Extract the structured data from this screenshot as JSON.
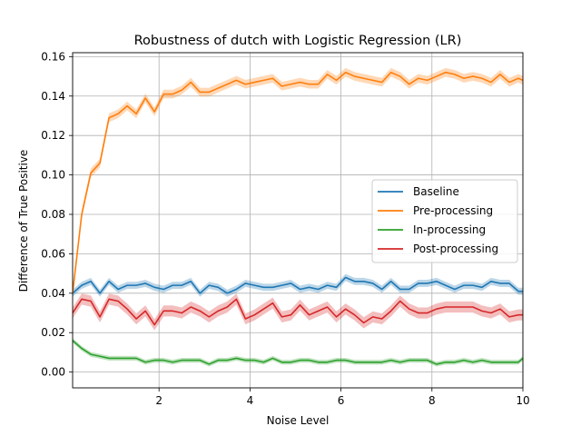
{
  "chart_data": {
    "type": "line",
    "title": "Robustness of dutch with Logistic Regression (LR)",
    "xlabel": "Noise Level",
    "ylabel": "Difference of True Positive",
    "xlim": [
      0.1,
      10
    ],
    "ylim": [
      -0.008,
      0.162
    ],
    "xticks": [
      2,
      4,
      6,
      8,
      10
    ],
    "yticks": [
      0.0,
      0.02,
      0.04,
      0.06,
      0.08,
      0.1,
      0.12,
      0.14,
      0.16
    ],
    "ytick_labels": [
      "0.00",
      "0.02",
      "0.04",
      "0.06",
      "0.08",
      "0.10",
      "0.12",
      "0.14",
      "0.16"
    ],
    "grid": true,
    "legend_position": "center-right",
    "x": [
      0.1,
      0.3,
      0.5,
      0.7,
      0.9,
      1.1,
      1.3,
      1.5,
      1.7,
      1.9,
      2.1,
      2.3,
      2.5,
      2.7,
      2.9,
      3.1,
      3.3,
      3.5,
      3.7,
      3.9,
      4.1,
      4.3,
      4.5,
      4.7,
      4.9,
      5.1,
      5.3,
      5.5,
      5.7,
      5.9,
      6.1,
      6.3,
      6.5,
      6.7,
      6.9,
      7.1,
      7.3,
      7.5,
      7.7,
      7.9,
      8.1,
      8.3,
      8.5,
      8.7,
      8.9,
      9.1,
      9.3,
      9.5,
      9.7,
      9.9,
      10.0
    ],
    "series": [
      {
        "name": "Baseline",
        "color": "#1f77b4",
        "values": [
          0.04,
          0.044,
          0.046,
          0.04,
          0.046,
          0.042,
          0.044,
          0.044,
          0.045,
          0.043,
          0.042,
          0.044,
          0.044,
          0.046,
          0.04,
          0.044,
          0.043,
          0.04,
          0.042,
          0.045,
          0.044,
          0.043,
          0.043,
          0.044,
          0.045,
          0.042,
          0.043,
          0.042,
          0.044,
          0.043,
          0.048,
          0.046,
          0.046,
          0.045,
          0.042,
          0.046,
          0.042,
          0.042,
          0.045,
          0.045,
          0.046,
          0.044,
          0.042,
          0.044,
          0.044,
          0.043,
          0.046,
          0.045,
          0.045,
          0.041,
          0.041
        ],
        "band": 0.0018
      },
      {
        "name": "Pre-processing",
        "color": "#ff7f0e",
        "values": [
          0.04,
          0.08,
          0.101,
          0.106,
          0.129,
          0.131,
          0.135,
          0.131,
          0.139,
          0.132,
          0.141,
          0.141,
          0.143,
          0.147,
          0.142,
          0.142,
          0.144,
          0.146,
          0.148,
          0.146,
          0.147,
          0.148,
          0.149,
          0.145,
          0.146,
          0.147,
          0.146,
          0.146,
          0.151,
          0.148,
          0.152,
          0.15,
          0.149,
          0.148,
          0.147,
          0.152,
          0.15,
          0.146,
          0.149,
          0.148,
          0.15,
          0.152,
          0.151,
          0.149,
          0.15,
          0.149,
          0.147,
          0.151,
          0.147,
          0.149,
          0.148
        ],
        "band": 0.0022
      },
      {
        "name": "In-processing",
        "color": "#2ca02c",
        "values": [
          0.016,
          0.012,
          0.009,
          0.008,
          0.007,
          0.007,
          0.007,
          0.007,
          0.005,
          0.006,
          0.006,
          0.005,
          0.006,
          0.006,
          0.006,
          0.004,
          0.006,
          0.006,
          0.007,
          0.006,
          0.006,
          0.005,
          0.007,
          0.005,
          0.005,
          0.006,
          0.006,
          0.005,
          0.005,
          0.006,
          0.006,
          0.005,
          0.005,
          0.005,
          0.005,
          0.006,
          0.005,
          0.006,
          0.006,
          0.006,
          0.004,
          0.005,
          0.005,
          0.006,
          0.005,
          0.006,
          0.005,
          0.005,
          0.005,
          0.005,
          0.007
        ],
        "band": 0.0012
      },
      {
        "name": "Post-processing",
        "color": "#d62728",
        "values": [
          0.03,
          0.037,
          0.036,
          0.028,
          0.037,
          0.036,
          0.032,
          0.027,
          0.031,
          0.024,
          0.031,
          0.031,
          0.03,
          0.033,
          0.031,
          0.028,
          0.031,
          0.033,
          0.037,
          0.027,
          0.029,
          0.032,
          0.035,
          0.028,
          0.029,
          0.034,
          0.029,
          0.031,
          0.033,
          0.028,
          0.032,
          0.029,
          0.025,
          0.028,
          0.027,
          0.031,
          0.036,
          0.032,
          0.03,
          0.03,
          0.032,
          0.033,
          0.033,
          0.033,
          0.033,
          0.031,
          0.03,
          0.032,
          0.028,
          0.029,
          0.029
        ],
        "band": 0.0028
      }
    ]
  }
}
